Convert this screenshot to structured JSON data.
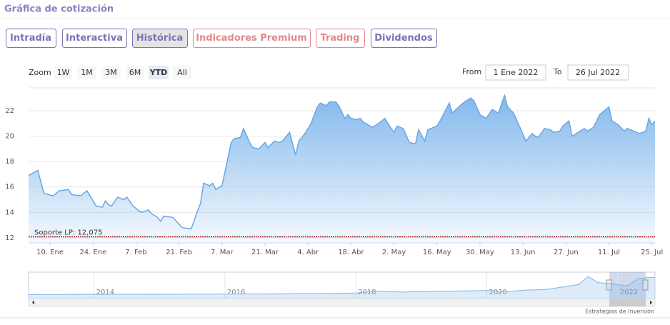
{
  "header": {
    "title": "Gráfica de cotización"
  },
  "tabs": [
    {
      "label": "Intradía",
      "color": "#7b73b3"
    },
    {
      "label": "Interactiva",
      "color": "#7b73b3"
    },
    {
      "label": "Histórica",
      "color": "#7b73b3"
    },
    {
      "label": "Indicadores Premium",
      "color": "#e08a8a"
    },
    {
      "label": "Trading",
      "color": "#e08a8a"
    },
    {
      "label": "Dividendos",
      "color": "#7b73b3"
    }
  ],
  "active_tab": 2,
  "zoom": {
    "label": "Zoom",
    "buttons": [
      "1W",
      "1M",
      "3M",
      "6M",
      "YTD",
      "All"
    ],
    "active": 4
  },
  "range": {
    "from_label": "From",
    "from": "1 Ene 2022",
    "to_label": "To",
    "to": "26 Jul 2022"
  },
  "credit": "Estrategias de Inversión",
  "chart_data": {
    "type": "area",
    "color": "#7cb5ec",
    "grid": true,
    "xlim": [
      3,
      207
    ],
    "ylim": [
      11.6,
      23.8
    ],
    "xticks": [
      {
        "value": 10,
        "label": "10. Ene"
      },
      {
        "value": 24,
        "label": "24. Ene"
      },
      {
        "value": 38,
        "label": "7. Feb"
      },
      {
        "value": 52,
        "label": "21. Feb"
      },
      {
        "value": 66,
        "label": "7. Mar"
      },
      {
        "value": 80,
        "label": "21. Mar"
      },
      {
        "value": 94,
        "label": "4. Abr"
      },
      {
        "value": 108,
        "label": "18. Abr"
      },
      {
        "value": 122,
        "label": "2. May"
      },
      {
        "value": 136,
        "label": "16. May"
      },
      {
        "value": 150,
        "label": "30. May"
      },
      {
        "value": 164,
        "label": "13. Jun"
      },
      {
        "value": 178,
        "label": "27. Jun"
      },
      {
        "value": 192,
        "label": "11. Jul"
      },
      {
        "value": 206,
        "label": "25. Jul"
      }
    ],
    "yticks": [
      12,
      14,
      16,
      18,
      20,
      22
    ],
    "x": [
      3,
      6,
      8,
      11,
      13,
      16,
      17,
      20,
      22,
      25,
      27,
      28,
      29,
      30,
      32,
      34,
      35,
      37,
      39,
      40,
      42,
      43,
      45,
      46,
      47,
      50,
      53,
      56,
      58,
      59,
      60,
      62,
      63,
      64,
      66,
      69,
      70,
      72,
      73,
      75,
      76,
      78,
      80,
      81,
      83,
      85,
      86,
      88,
      90,
      91,
      93,
      95,
      97,
      98,
      100,
      101,
      103,
      104,
      106,
      107,
      108,
      110,
      111,
      112,
      115,
      117,
      119,
      120,
      122,
      123,
      125,
      127,
      129,
      130,
      132,
      133,
      136,
      137,
      140,
      141,
      143,
      145,
      147,
      148,
      150,
      152,
      154,
      156,
      158,
      159,
      161,
      163,
      165,
      167,
      168,
      169,
      171,
      173,
      174,
      176,
      177,
      179,
      180,
      182,
      184,
      185,
      187,
      189,
      192,
      193,
      195,
      197,
      198,
      200,
      202,
      204,
      205,
      206,
      207
    ],
    "values": [
      16.9,
      17.3,
      15.5,
      15.3,
      15.7,
      15.8,
      15.4,
      15.3,
      15.7,
      14.5,
      14.4,
      14.9,
      14.6,
      14.5,
      15.2,
      15.0,
      15.2,
      14.5,
      14.1,
      14.0,
      14.2,
      13.9,
      13.6,
      13.3,
      13.7,
      13.6,
      12.8,
      12.7,
      14.1,
      14.7,
      16.3,
      16.1,
      16.3,
      15.8,
      16.1,
      19.5,
      19.8,
      19.9,
      20.6,
      19.5,
      19.1,
      19.0,
      19.5,
      19.1,
      19.6,
      19.5,
      19.7,
      20.3,
      18.5,
      19.6,
      20.2,
      21.0,
      22.3,
      22.6,
      22.4,
      22.7,
      22.7,
      22.4,
      21.4,
      21.7,
      21.4,
      21.3,
      21.4,
      21.1,
      20.7,
      21.0,
      21.4,
      21.0,
      20.3,
      20.8,
      20.6,
      19.5,
      19.4,
      20.5,
      19.6,
      20.5,
      20.8,
      21.2,
      22.6,
      21.8,
      22.3,
      22.7,
      23.0,
      22.8,
      21.7,
      21.4,
      22.1,
      21.8,
      23.2,
      22.3,
      21.8,
      20.7,
      19.6,
      20.2,
      20.0,
      19.9,
      20.6,
      20.5,
      20.3,
      20.4,
      20.8,
      21.2,
      20.0,
      20.3,
      20.6,
      20.4,
      20.7,
      21.7,
      22.3,
      21.2,
      20.9,
      20.4,
      20.6,
      20.4,
      20.2,
      20.4,
      21.4,
      20.9,
      21.2
    ],
    "plot_line": {
      "label": "Soporte LP: 12,075",
      "value": 12.075,
      "color": "#a52a2a"
    },
    "navigator": {
      "xlim": [
        2013,
        2022.57
      ],
      "ylim": [
        0,
        25
      ],
      "xticks": [
        2014,
        2016,
        2018,
        2020,
        2022
      ],
      "x": [
        2013,
        2014,
        2015,
        2016,
        2017,
        2017.5,
        2018,
        2018.3,
        2018.7,
        2019,
        2019.5,
        2020,
        2020.3,
        2020.6,
        2020.9,
        2021.2,
        2021.4,
        2021.55,
        2021.7,
        2021.9,
        2022,
        2022.15,
        2022.3,
        2022.45,
        2022.57
      ],
      "values": [
        4,
        4.2,
        4.3,
        4.5,
        4.8,
        5,
        5.5,
        7.5,
        6.5,
        7,
        7.5,
        8,
        7,
        8.5,
        9,
        12,
        14,
        22,
        16,
        15,
        14,
        12.8,
        19.5,
        21,
        21
      ]
    }
  }
}
